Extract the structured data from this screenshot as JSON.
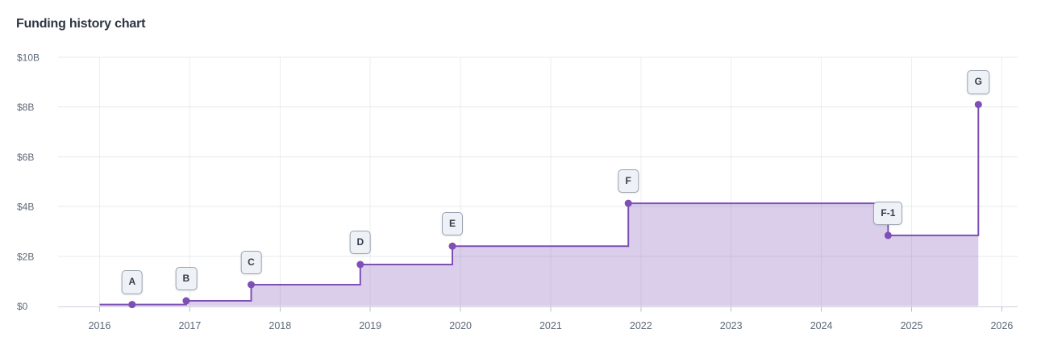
{
  "chart_data": {
    "type": "area-step",
    "title": "Funding history chart",
    "unit": "USD billions",
    "legend": "none",
    "grid": true,
    "x_axis": {
      "tick_labels": [
        "2016",
        "2017",
        "2018",
        "2019",
        "2020",
        "2021",
        "2022",
        "2023",
        "2024",
        "2025",
        "2026"
      ],
      "tick_values": [
        2016,
        2017,
        2018,
        2019,
        2020,
        2021,
        2022,
        2023,
        2024,
        2025,
        2026
      ],
      "domain": [
        2015.54,
        2026.175
      ]
    },
    "y_axis": {
      "tick_labels": [
        "$0",
        "$2B",
        "$4B",
        "$6B",
        "$8B",
        "$10B"
      ],
      "tick_values": [
        0,
        2,
        4,
        6,
        8,
        10
      ],
      "domain": [
        0,
        10
      ]
    },
    "line_start_year": 2016.0,
    "rounds": [
      {
        "label": "A",
        "year": 2016.36,
        "value_billions": 0.06
      },
      {
        "label": "B",
        "year": 2016.96,
        "value_billions": 0.21
      },
      {
        "label": "C",
        "year": 2017.68,
        "value_billions": 0.86
      },
      {
        "label": "D",
        "year": 2018.89,
        "value_billions": 1.67
      },
      {
        "label": "E",
        "year": 2019.91,
        "value_billions": 2.41
      },
      {
        "label": "F",
        "year": 2021.86,
        "value_billions": 4.13
      },
      {
        "label": "F-1",
        "year": 2024.74,
        "value_billions": 2.84
      },
      {
        "label": "G",
        "year": 2025.74,
        "value_billions": 8.1
      }
    ],
    "colors": {
      "line": "#7e4fb5",
      "fill": "rgba(126,79,181,0.28)",
      "grid_h": "#e4e8ec",
      "grid_v": "#eceef2",
      "axis": "#ccd2d9",
      "tick": "#b9c0c9",
      "axis_text": "#5d6878",
      "chip_bg": "#eef1f5",
      "chip_border": "#9aa4b2",
      "chip_text": "#343d4c",
      "title_text": "#2d3643"
    }
  }
}
